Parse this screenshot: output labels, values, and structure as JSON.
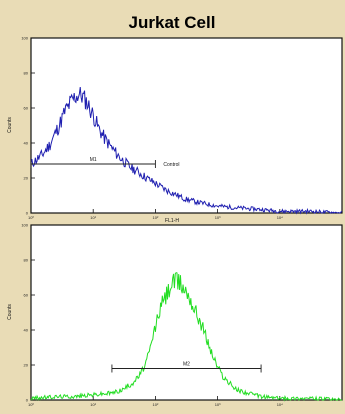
{
  "title": "Jurkat Cell",
  "colors": {
    "background": "#e9dcb6",
    "control_series": "#1f1fb0",
    "sample_series": "#22dd22",
    "axes": "#111111"
  },
  "chart_data": [
    {
      "type": "area",
      "panel": "top",
      "xscale": "log",
      "xlim": [
        1,
        100000
      ],
      "ylim": [
        0,
        100
      ],
      "x_ticks": [
        "10⁰",
        "10¹",
        "10²",
        "10³",
        "10⁴"
      ],
      "y_ticks": [
        "0",
        "20",
        "40",
        "60",
        "80",
        "100"
      ],
      "xlabel": "FL1-H",
      "ylabel": "Counts",
      "series": [
        {
          "name": "Control",
          "color": "#1f1fb0",
          "x": [
            1,
            1.5,
            2,
            2.5,
            3,
            3.5,
            4,
            4.5,
            5,
            5.5,
            6,
            7,
            8,
            9,
            10,
            12,
            15,
            20,
            25,
            30,
            40,
            50,
            60,
            80,
            100,
            150,
            200,
            300,
            500,
            1000,
            2000,
            5000,
            10000,
            30000,
            100000
          ],
          "y": [
            28,
            33,
            39,
            46,
            52,
            58,
            61,
            64,
            66,
            67,
            68,
            66,
            63,
            59,
            56,
            49,
            43,
            37,
            33,
            30,
            26,
            24,
            22,
            19,
            17,
            13,
            11,
            8,
            6,
            4,
            3,
            2,
            1,
            1,
            0
          ]
        }
      ],
      "gate": {
        "label": "M1",
        "x_start": 1,
        "x_end": 100,
        "y_level": 28
      },
      "gate_annotation": "Control"
    },
    {
      "type": "area",
      "panel": "bottom",
      "xscale": "log",
      "xlim": [
        1,
        100000
      ],
      "ylim": [
        0,
        100
      ],
      "x_ticks": [
        "10⁰",
        "10¹",
        "10²",
        "10³",
        "10⁴"
      ],
      "y_ticks": [
        "0",
        "20",
        "40",
        "60",
        "80",
        "100"
      ],
      "xlabel": "",
      "ylabel": "Counts",
      "series": [
        {
          "name": "",
          "color": "#22dd22",
          "x": [
            1,
            3,
            5,
            10,
            20,
            30,
            40,
            50,
            60,
            70,
            80,
            90,
            100,
            120,
            150,
            180,
            200,
            250,
            300,
            350,
            400,
            500,
            600,
            700,
            800,
            1000,
            1200,
            1500,
            2000,
            3000,
            5000,
            10000,
            30000,
            100000
          ],
          "y": [
            1,
            2,
            2,
            3,
            4,
            6,
            9,
            12,
            16,
            21,
            27,
            35,
            42,
            53,
            60,
            66,
            68,
            67,
            63,
            60,
            54,
            47,
            40,
            33,
            27,
            19,
            14,
            10,
            6,
            4,
            2,
            1,
            1,
            0
          ]
        }
      ],
      "gate": {
        "label": "M2",
        "x_start": 20,
        "x_end": 5000,
        "y_level": 18
      }
    }
  ]
}
